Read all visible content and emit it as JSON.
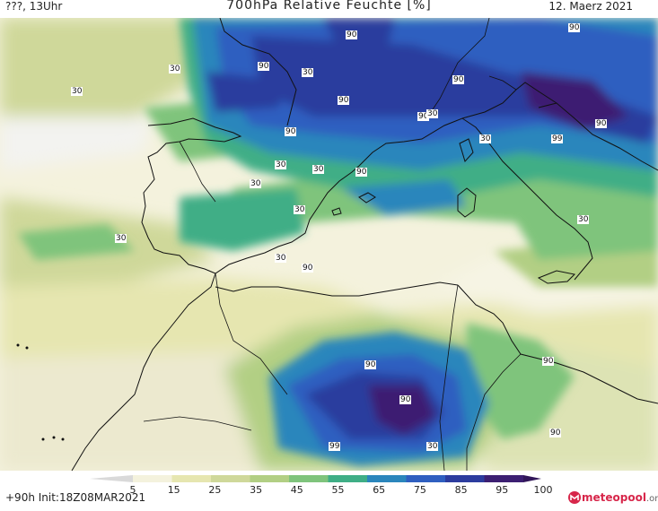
{
  "header": {
    "left": "???, 13Uhr",
    "title": "700hPa Relative Feuchte [%]",
    "date": "12. Maerz 2021"
  },
  "footer": {
    "run": "+90h  Init:18Z08MAR2021",
    "logo_name": "meteopool",
    "logo_tld": ".org"
  },
  "colorbar": {
    "labels": [
      "5",
      "15",
      "25",
      "35",
      "45",
      "55",
      "65",
      "75",
      "85",
      "95",
      "100"
    ],
    "colors": [
      "#d9d9d9",
      "#f4f2dd",
      "#e6e6b0",
      "#cfd89a",
      "#b2cf84",
      "#7fc47c",
      "#3fae86",
      "#2b86bc",
      "#2f5fc0",
      "#2c3c9e",
      "#3c1f72",
      "#311659"
    ]
  },
  "contour_labels": [
    "90",
    "90",
    "30",
    "30",
    "90",
    "30",
    "90",
    "90",
    "90",
    "30",
    "90",
    "90",
    "30",
    "30",
    "30",
    "30",
    "30",
    "30",
    "99",
    "30",
    "90",
    "90",
    "30",
    "90",
    "90",
    "99",
    "30",
    "90",
    "90"
  ]
}
